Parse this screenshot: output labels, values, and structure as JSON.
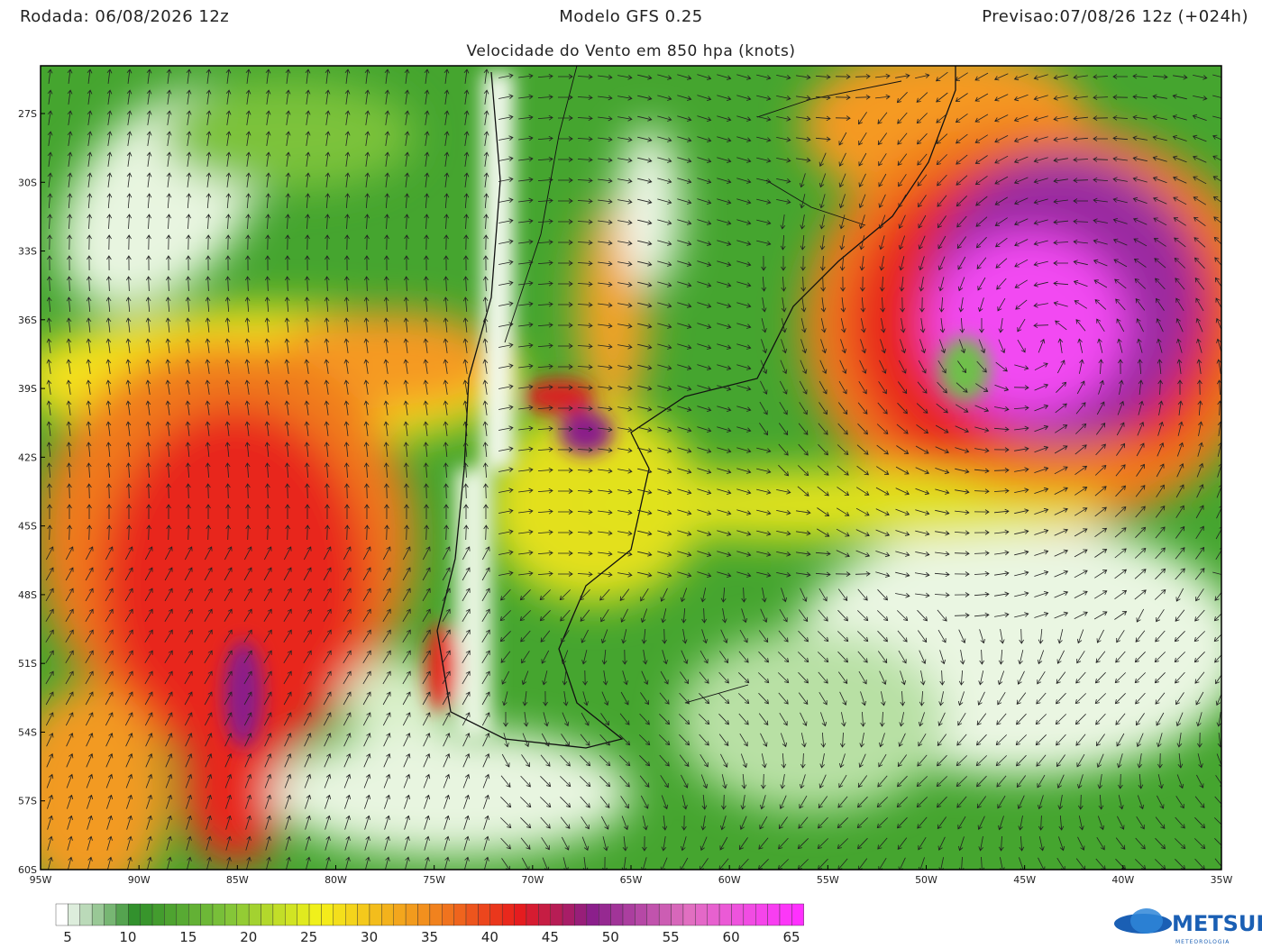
{
  "header": {
    "run": "Rodada: 06/08/2026 12z",
    "model": "Modelo GFS 0.25",
    "forecast": "Previsao:07/08/26 12z (+024h)",
    "subtitle": "Velocidade do Vento em 850 hpa (knots)"
  },
  "map": {
    "lat_labels": [
      "27S",
      "30S",
      "33S",
      "36S",
      "39S",
      "42S",
      "45S",
      "48S",
      "51S",
      "54S",
      "57S",
      "60S"
    ],
    "lon_labels": [
      "95W",
      "90W",
      "85W",
      "80W",
      "75W",
      "70W",
      "65W",
      "60W",
      "55W",
      "50W",
      "45W",
      "40W",
      "35W"
    ]
  },
  "colorbar": {
    "labels": [
      5,
      10,
      15,
      20,
      25,
      30,
      35,
      40,
      45,
      50,
      55,
      60,
      65
    ]
  },
  "logo": {
    "name": "METSUL",
    "tagline": "METEOROLOGIA"
  }
}
